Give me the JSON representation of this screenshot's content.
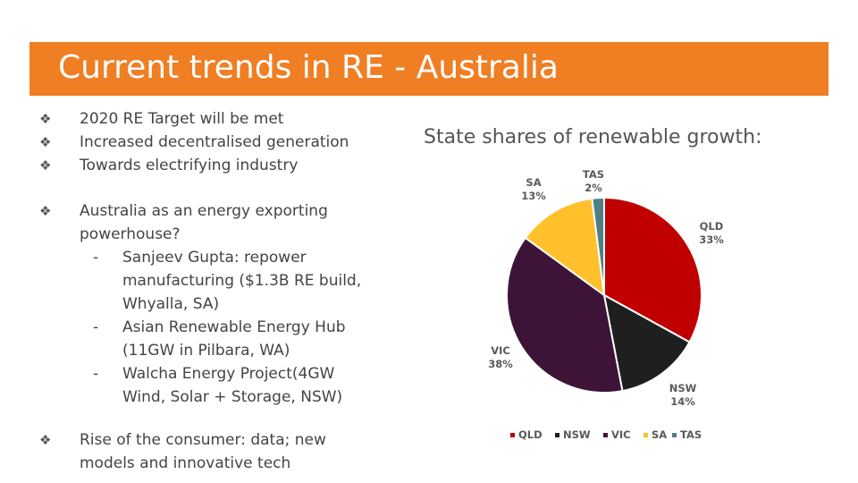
{
  "slide": {
    "title": "Current trends in RE - Australia",
    "accent_color": "#F07E22"
  },
  "bullets": {
    "marker": "❖",
    "sub_marker": "-",
    "group1": [
      "2020 RE Target will be met",
      "Increased decentralised generation",
      "Towards electrifying industry"
    ],
    "exporting": {
      "lines": [
        "Australia as an energy exporting",
        "powerhouse?"
      ],
      "subitems": [
        {
          "lines": [
            "Sanjeev Gupta: repower",
            "manufacturing ($1.3B RE build,",
            "Whyalla, SA)"
          ]
        },
        {
          "lines": [
            "Asian Renewable Energy Hub",
            "(11GW in Pilbara, WA)"
          ]
        },
        {
          "lines": [
            "Walcha Energy Project(4GW",
            "Wind, Solar + Storage, NSW)"
          ]
        }
      ]
    },
    "consumer": {
      "lines": [
        "Rise of the consumer:  data; new",
        "models and innovative tech"
      ]
    }
  },
  "chart_data": {
    "type": "pie",
    "title": "State shares of renewable growth:",
    "categories": [
      "QLD",
      "NSW",
      "VIC",
      "SA",
      "TAS"
    ],
    "values": [
      33,
      14,
      38,
      13,
      2
    ],
    "value_labels": [
      "33%",
      "14%",
      "38%",
      "13%",
      "2%"
    ],
    "colors": [
      "#C00000",
      "#1F1F1F",
      "#3D1437",
      "#FFC02B",
      "#4E7F84"
    ],
    "legend_position": "bottom",
    "start_angle_deg": 0,
    "direction": "clockwise"
  }
}
